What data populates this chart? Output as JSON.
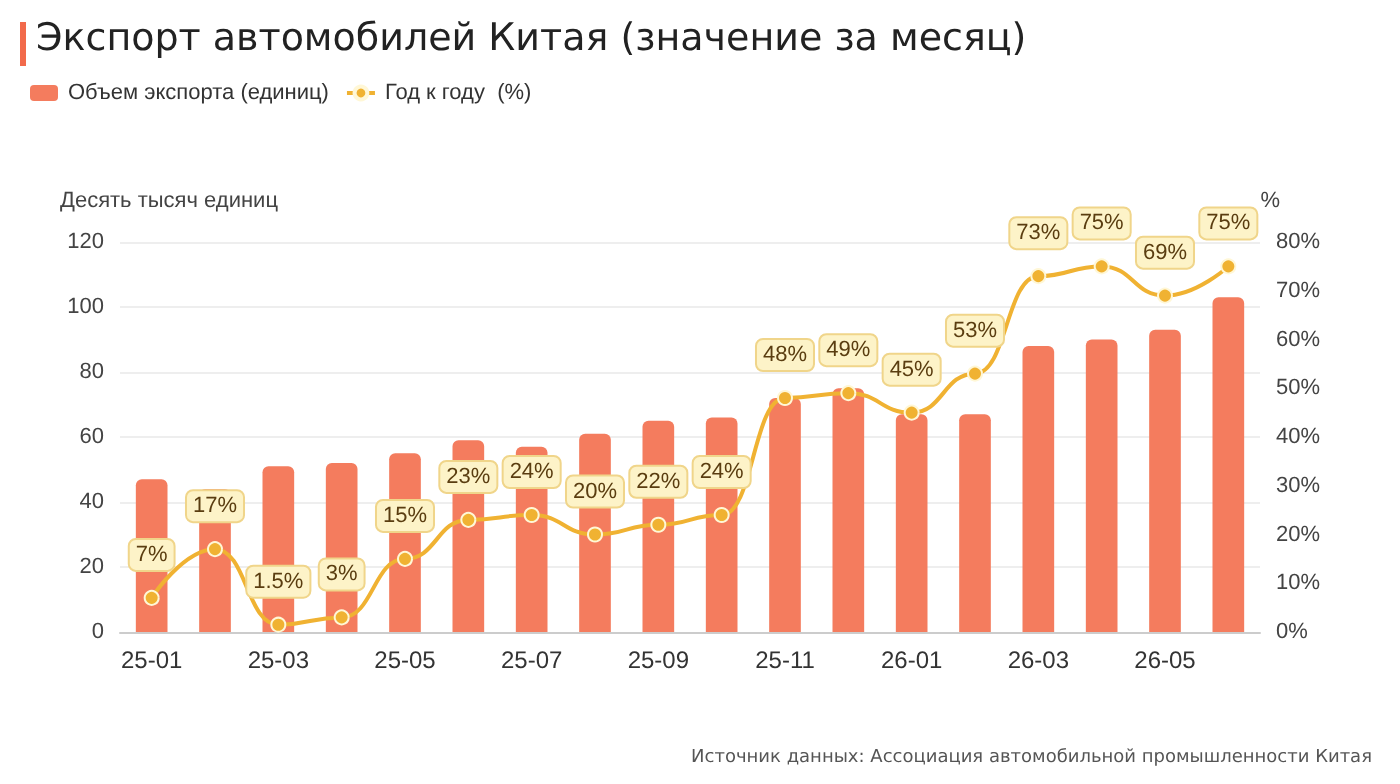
{
  "chart_data": {
    "type": "bar",
    "title": "Экспорт автомобилей Китая (значение за месяц)",
    "ylabel": "Десять тысяч единиц",
    "y2label": "%",
    "categories": [
      "25-01",
      null,
      "25-03",
      null,
      "25-05",
      null,
      "25-07",
      null,
      "25-09",
      null,
      "25-11",
      null,
      "26-01",
      null,
      "26-03",
      null,
      "26-05",
      null
    ],
    "series": [
      {
        "name": "Объем экспорта (единиц)",
        "color": "#f47c5e",
        "values": [
          47,
          44,
          51,
          52,
          55,
          59,
          57,
          61,
          65,
          66,
          72,
          75,
          67,
          67,
          88,
          90,
          93,
          103
        ]
      },
      {
        "name": "Год к году  (%)",
        "type": "line",
        "axis": "y2",
        "color": "#f0b232",
        "marker": "circle",
        "values": [
          7,
          17,
          1.5,
          3,
          15,
          23,
          24,
          20,
          22,
          24,
          48,
          49,
          45,
          53,
          73,
          75,
          69,
          75
        ],
        "value_labels": [
          "7%",
          "17%",
          "1.5%",
          "3%",
          "15%",
          "23%",
          "24%",
          "20%",
          "22%",
          "24%",
          "48%",
          "49%",
          "45%",
          "53%",
          "73%",
          "75%",
          "69%",
          "75%"
        ]
      }
    ],
    "ylim": [
      0,
      120
    ],
    "yticks": [
      0,
      20,
      40,
      60,
      80,
      100,
      120
    ],
    "y2lim": [
      0,
      80
    ],
    "y2ticks": [
      {
        "value": 0,
        "label": "0%"
      },
      {
        "value": 10,
        "label": "10%"
      },
      {
        "value": 20,
        "label": "20%"
      },
      {
        "value": 30,
        "label": "30%"
      },
      {
        "value": 40,
        "label": "40%"
      },
      {
        "value": 50,
        "label": "50%"
      },
      {
        "value": 60,
        "label": "60%"
      },
      {
        "value": 70,
        "label": "70%"
      },
      {
        "value": 80,
        "label": "80%"
      }
    ],
    "grid": "y",
    "legend": "top left",
    "annotations": [
      "Источник данных: Ассоциация автомобильной промышленности Китая"
    ]
  }
}
